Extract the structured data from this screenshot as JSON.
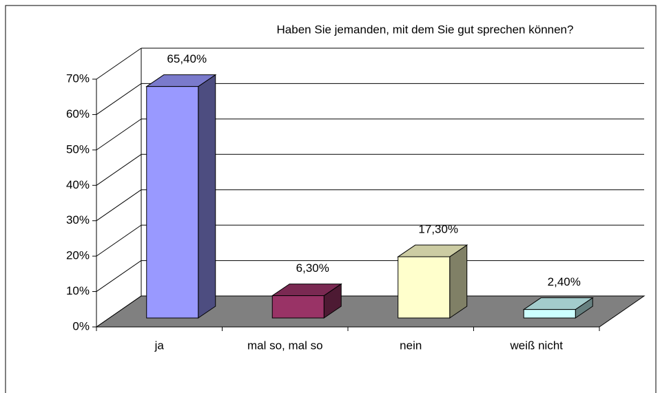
{
  "chart_data": {
    "type": "bar3d",
    "title": "Haben Sie jemanden, mit dem Sie gut sprechen können?",
    "categories": [
      "ja",
      "mal so, mal so",
      "nein",
      "weiß nicht"
    ],
    "values": [
      65.4,
      6.3,
      17.3,
      2.4
    ],
    "value_labels": [
      "65,40%",
      "6,30%",
      "17,30%",
      "2,40%"
    ],
    "colors": [
      "#9999ff",
      "#993366",
      "#ffffcc",
      "#ccffff"
    ],
    "ylim": [
      0,
      70
    ],
    "yticks": [
      {
        "value": 0,
        "label": "0%"
      },
      {
        "value": 10,
        "label": "10%"
      },
      {
        "value": 20,
        "label": "20%"
      },
      {
        "value": 30,
        "label": "30%"
      },
      {
        "value": 40,
        "label": "40%"
      },
      {
        "value": 50,
        "label": "50%"
      },
      {
        "value": 60,
        "label": "60%"
      },
      {
        "value": 70,
        "label": "70%"
      }
    ],
    "grid": true
  }
}
